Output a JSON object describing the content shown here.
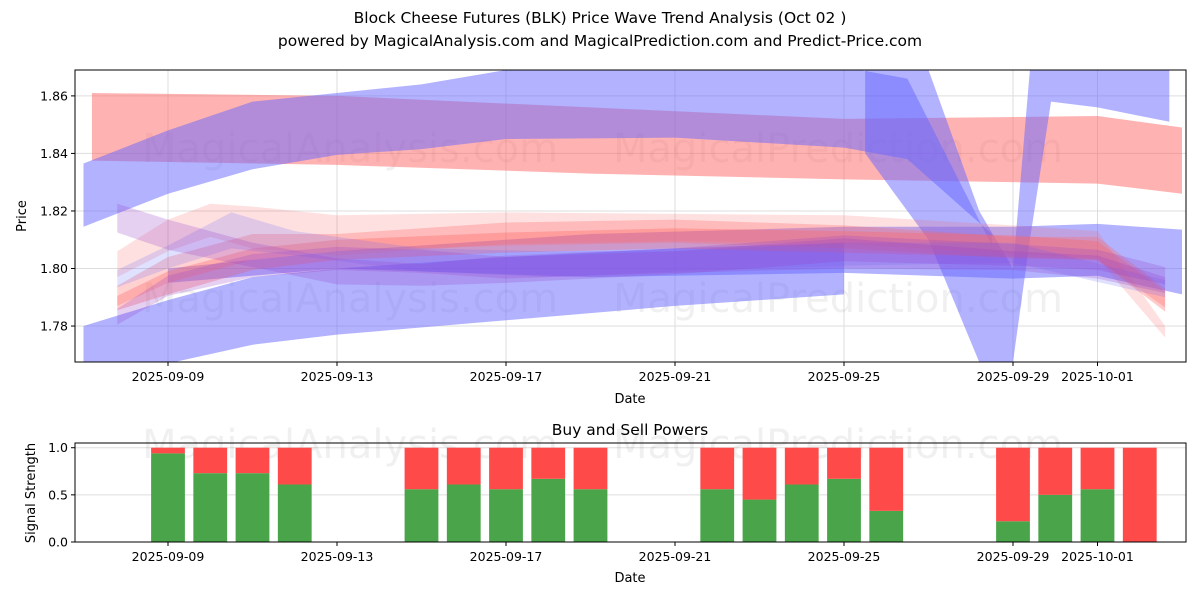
{
  "title": "Block Cheese Futures (BLK) Price Wave Trend Analysis (Oct 02 )",
  "subtitle": "powered by MagicalAnalysis.com and MagicalPrediction.com and Predict-Price.com",
  "watermarks": [
    "MagicalAnalysis.com",
    "MagicalPrediction.com"
  ],
  "colors": {
    "buy": "#4aa54a",
    "sell": "#ff4a4a",
    "band_blue": "#6666ff",
    "band_red": "#ff6666",
    "grid": "#dddddd"
  },
  "chart_data": [
    {
      "type": "area",
      "title": "",
      "xlabel": "Date",
      "ylabel": "Price",
      "ylim": [
        1.7675,
        1.869
      ],
      "xlim": [
        "2025-09-06T20:00",
        "2025-10-03T03:00"
      ],
      "grid": true,
      "yticks": [
        "1.78",
        "1.80",
        "1.82",
        "1.84",
        "1.86"
      ],
      "ytick_values": [
        1.78,
        1.8,
        1.82,
        1.84,
        1.86
      ],
      "xticks": [
        "2025-09-09",
        "2025-09-13",
        "2025-09-17",
        "2025-09-21",
        "2025-09-25",
        "2025-09-29",
        "2025-10-01"
      ],
      "xtick_days": [
        0,
        4,
        8,
        12,
        16,
        20,
        22
      ],
      "x_origin": "2025-09-09",
      "bands": [
        {
          "name": "red-top-band",
          "color": "red",
          "opacity": 0.5,
          "points": [
            [
              -1.8,
              1.8375,
              1.861
            ],
            [
              4,
              1.836,
              1.86
            ],
            [
              10,
              1.833,
              1.856
            ],
            [
              16,
              1.831,
              1.852
            ],
            [
              22,
              1.8295,
              1.853
            ],
            [
              24,
              1.826,
              1.849
            ]
          ]
        },
        {
          "name": "blue-top-band",
          "color": "blue",
          "opacity": 0.5,
          "points": [
            [
              -2,
              1.8145,
              1.8365
            ],
            [
              0,
              1.826,
              1.848
            ],
            [
              2,
              1.8345,
              1.858
            ],
            [
              4,
              1.8395,
              1.861
            ],
            [
              6,
              1.8415,
              1.864
            ],
            [
              8,
              1.845,
              1.869
            ],
            [
              12,
              1.8455,
              1.872
            ],
            [
              16,
              1.842,
              1.87
            ],
            [
              17.5,
              1.838,
              1.866
            ],
            [
              19.5,
              1.812,
              1.808
            ]
          ]
        },
        {
          "name": "blue-v-band",
          "color": "blue",
          "opacity": 0.5,
          "points": [
            [
              16.5,
              1.84,
              1.869
            ],
            [
              18,
              1.81,
              1.869
            ],
            [
              19.2,
              1.7675,
              1.82
            ],
            [
              20.0,
              1.7675,
              1.8
            ],
            [
              20.4,
              1.81,
              1.869
            ],
            [
              20.9,
              1.858,
              1.869
            ],
            [
              22,
              1.856,
              1.869
            ],
            [
              23.7,
              1.851,
              1.869
            ]
          ]
        },
        {
          "name": "blue-mid-band",
          "color": "blue",
          "opacity": 0.5,
          "points": [
            [
              0,
              1.795,
              1.8
            ],
            [
              4,
              1.8,
              1.806
            ],
            [
              10,
              1.797,
              1.812
            ],
            [
              16,
              1.7985,
              1.8145
            ],
            [
              20,
              1.7965,
              1.8145
            ],
            [
              22,
              1.7975,
              1.8155
            ],
            [
              24,
              1.791,
              1.8135
            ]
          ]
        },
        {
          "name": "blue-low-band",
          "color": "blue",
          "opacity": 0.5,
          "points": [
            [
              -2,
              1.7665,
              1.78
            ],
            [
              0,
              1.767,
              1.789
            ],
            [
              2,
              1.7735,
              1.797
            ],
            [
              4,
              1.777,
              1.8
            ],
            [
              8,
              1.782,
              1.804
            ],
            [
              12,
              1.787,
              1.807
            ],
            [
              16,
              1.791,
              1.809
            ]
          ]
        },
        {
          "name": "red-mid-band-1",
          "color": "red",
          "opacity": 0.35,
          "points": [
            [
              -1.2,
              1.7855,
              1.7905
            ],
            [
              0,
              1.791,
              1.799
            ],
            [
              2,
              1.7995,
              1.807
            ],
            [
              4,
              1.803,
              1.81
            ],
            [
              8,
              1.8055,
              1.8125
            ],
            [
              12,
              1.807,
              1.814
            ],
            [
              16,
              1.8055,
              1.813
            ],
            [
              20,
              1.804,
              1.8115
            ],
            [
              22,
              1.803,
              1.8095
            ],
            [
              23.6,
              1.785,
              1.792
            ]
          ]
        },
        {
          "name": "red-mid-band-2",
          "color": "red",
          "opacity": 0.3,
          "points": [
            [
              -1.2,
              1.787,
              1.794
            ],
            [
              0,
              1.795,
              1.804
            ],
            [
              2,
              1.803,
              1.812
            ],
            [
              4,
              1.806,
              1.812
            ],
            [
              8,
              1.808,
              1.816
            ],
            [
              12,
              1.809,
              1.817
            ],
            [
              16,
              1.807,
              1.815
            ],
            [
              20,
              1.8035,
              1.811
            ],
            [
              22,
              1.803,
              1.811
            ],
            [
              23.6,
              1.7865,
              1.793
            ]
          ]
        },
        {
          "name": "red-light-band",
          "color": "red",
          "opacity": 0.2,
          "points": [
            [
              -1.2,
              1.797,
              1.806
            ],
            [
              0,
              1.806,
              1.817
            ],
            [
              1,
              1.811,
              1.8225
            ],
            [
              2,
              1.807,
              1.8215
            ],
            [
              4,
              1.8045,
              1.8185
            ],
            [
              8,
              1.8085,
              1.8195
            ],
            [
              12,
              1.8095,
              1.819
            ],
            [
              16,
              1.8085,
              1.8185
            ],
            [
              20,
              1.805,
              1.815
            ],
            [
              22,
              1.8035,
              1.813
            ],
            [
              23.6,
              1.776,
              1.78
            ]
          ]
        },
        {
          "name": "blue-light-band",
          "color": "blue",
          "opacity": 0.2,
          "points": [
            [
              -1.2,
              1.7935,
              1.7995
            ],
            [
              0,
              1.8,
              1.808
            ],
            [
              1.5,
              1.807,
              1.8195
            ],
            [
              3,
              1.8045,
              1.813
            ],
            [
              6,
              1.799,
              1.807
            ],
            [
              9,
              1.797,
              1.806
            ],
            [
              12,
              1.799,
              1.806
            ],
            [
              16,
              1.801,
              1.809
            ],
            [
              20,
              1.802,
              1.809
            ],
            [
              23.6,
              1.79,
              1.796
            ]
          ]
        },
        {
          "name": "purple-mid-band-1",
          "color": "purple",
          "opacity": 0.25,
          "points": [
            [
              -1.2,
              1.7805,
              1.786
            ],
            [
              0,
              1.7905,
              1.7975
            ],
            [
              2,
              1.797,
              1.805
            ],
            [
              4,
              1.7995,
              1.8075
            ],
            [
              6,
              1.7985,
              1.8065
            ],
            [
              8,
              1.7965,
              1.804
            ],
            [
              12,
              1.7985,
              1.806
            ],
            [
              16,
              1.8,
              1.8105
            ],
            [
              20,
              1.7995,
              1.806
            ],
            [
              22,
              1.7965,
              1.8045
            ],
            [
              23.6,
              1.7915,
              1.797
            ]
          ]
        },
        {
          "name": "purple-mid-band-2",
          "color": "purple",
          "opacity": 0.25,
          "points": [
            [
              -1.2,
              1.8125,
              1.8225
            ],
            [
              0,
              1.8065,
              1.817
            ],
            [
              2,
              1.8005,
              1.809
            ],
            [
              4,
              1.7945,
              1.8035
            ],
            [
              6,
              1.794,
              1.8015
            ],
            [
              8,
              1.795,
              1.8045
            ],
            [
              12,
              1.798,
              1.807
            ],
            [
              16,
              1.8025,
              1.8115
            ],
            [
              20,
              1.801,
              1.8085
            ],
            [
              22,
              1.7995,
              1.8065
            ],
            [
              23.6,
              1.7945,
              1.8005
            ]
          ]
        }
      ]
    },
    {
      "type": "bar",
      "title": "Buy and Sell Powers",
      "xlabel": "Date",
      "ylabel": "Signal Strength",
      "ylim": [
        0,
        1.05
      ],
      "yticks": [
        "0.0",
        "0.5",
        "1.0"
      ],
      "ytick_values": [
        0,
        0.5,
        1.0
      ],
      "xticks": [
        "2025-09-09",
        "2025-09-13",
        "2025-09-17",
        "2025-09-21",
        "2025-09-25",
        "2025-09-29",
        "2025-10-01"
      ],
      "xtick_days": [
        0,
        4,
        8,
        12,
        16,
        20,
        22
      ],
      "categories": [
        "2025-09-09",
        "2025-09-10",
        "2025-09-11",
        "2025-09-12",
        "2025-09-15",
        "2025-09-16",
        "2025-09-17",
        "2025-09-18",
        "2025-09-19",
        "2025-09-22",
        "2025-09-23",
        "2025-09-24",
        "2025-09-25",
        "2025-09-26",
        "2025-09-29",
        "2025-09-30",
        "2025-10-01",
        "2025-10-02"
      ],
      "category_days": [
        0,
        1,
        2,
        3,
        6,
        7,
        8,
        9,
        10,
        13,
        14,
        15,
        16,
        17,
        20,
        21,
        22,
        23
      ],
      "series": [
        {
          "name": "Buy",
          "color": "green",
          "values": [
            0.94,
            0.73,
            0.73,
            0.61,
            0.56,
            0.61,
            0.56,
            0.67,
            0.56,
            0.56,
            0.45,
            0.61,
            0.67,
            0.33,
            0.22,
            0.5,
            0.56,
            0.0
          ]
        },
        {
          "name": "Sell",
          "color": "red",
          "values": [
            0.06,
            0.27,
            0.27,
            0.39,
            0.44,
            0.39,
            0.44,
            0.33,
            0.44,
            0.44,
            0.55,
            0.39,
            0.33,
            0.67,
            0.78,
            0.5,
            0.44,
            1.0
          ]
        }
      ]
    }
  ]
}
